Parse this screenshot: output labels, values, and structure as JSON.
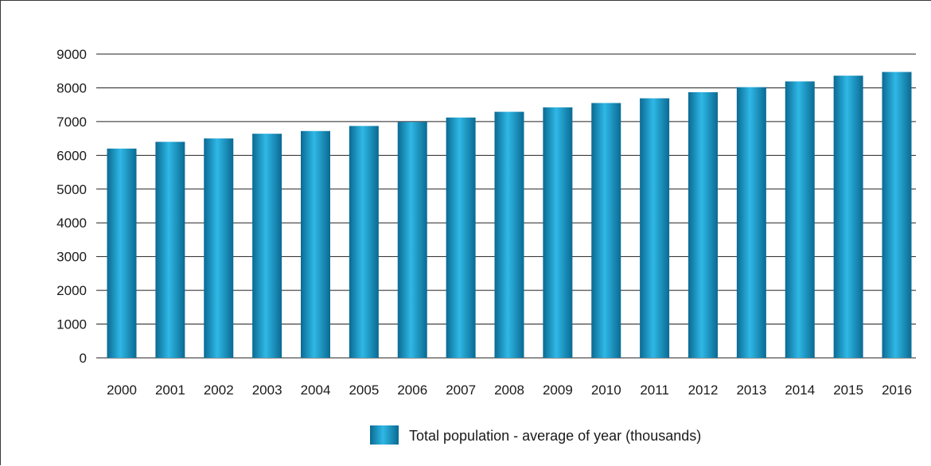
{
  "chart_data": {
    "type": "bar",
    "categories": [
      "2000",
      "2001",
      "2002",
      "2003",
      "2004",
      "2005",
      "2006",
      "2007",
      "2008",
      "2009",
      "2010",
      "2011",
      "2012",
      "2013",
      "2014",
      "2015",
      "2016"
    ],
    "series": [
      {
        "name": "Total population - average of year (thousands)",
        "values": [
          6200,
          6400,
          6500,
          6640,
          6720,
          6870,
          6990,
          7120,
          7290,
          7420,
          7550,
          7690,
          7870,
          8020,
          8190,
          8360,
          8470
        ]
      }
    ],
    "yticks": [
      "0",
      "1000",
      "2000",
      "3000",
      "4000",
      "5000",
      "6000",
      "7000",
      "8000",
      "9000"
    ],
    "ylim": [
      0,
      9000
    ],
    "grid": true,
    "legend_position": "bottom-center",
    "bar_color_dark": "#0a6a92",
    "bar_color_light": "#2fb8e6"
  }
}
